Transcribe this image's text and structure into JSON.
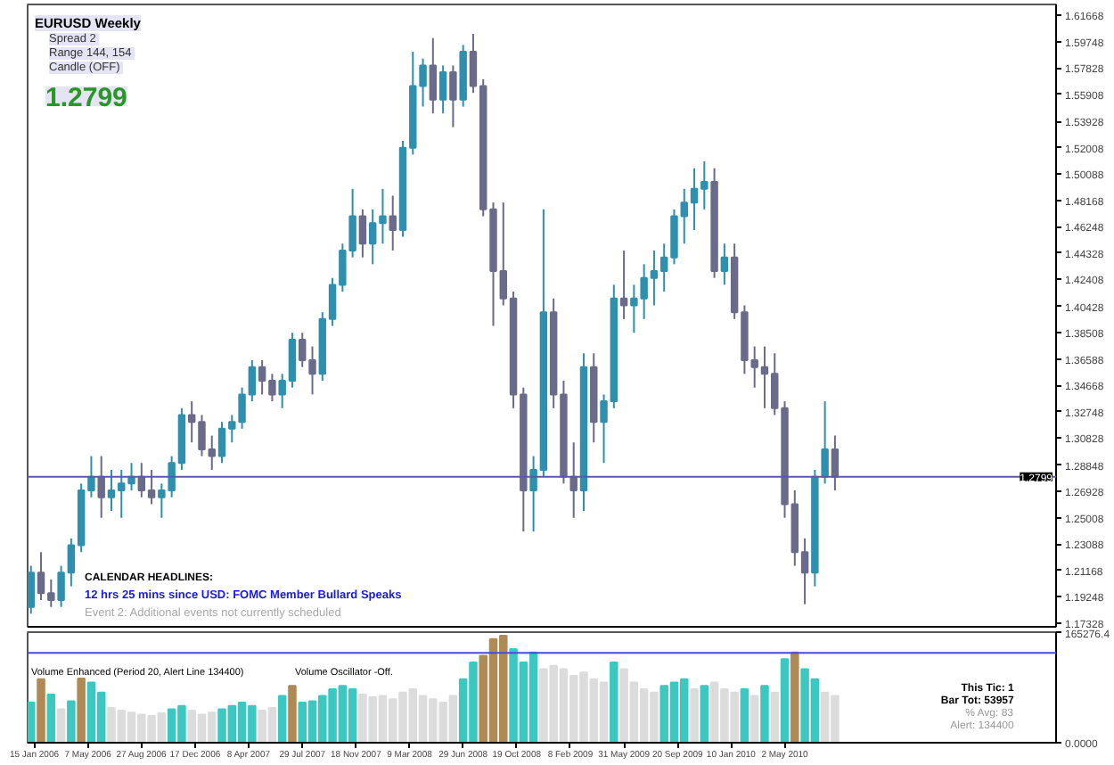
{
  "chart_data": [
    {
      "type": "candlestick",
      "title": "EURUSD Weekly",
      "tick_labels": "y",
      "x": [
        "2006-01-08",
        "2006-01-29",
        "2006-02-19",
        "2006-03-12",
        "2006-04-02",
        "2006-04-23",
        "2006-05-14",
        "2006-06-04",
        "2006-06-25",
        "2006-07-16",
        "2006-08-06",
        "2006-08-27",
        "2006-09-17",
        "2006-10-08",
        "2006-10-29",
        "2006-11-19",
        "2006-12-10",
        "2006-12-31",
        "2007-01-21",
        "2007-02-11",
        "2007-03-04",
        "2007-03-25",
        "2007-04-15",
        "2007-05-06",
        "2007-05-27",
        "2007-06-17",
        "2007-07-08",
        "2007-07-29",
        "2007-08-19",
        "2007-09-09",
        "2007-09-30",
        "2007-10-21",
        "2007-11-11",
        "2007-12-02",
        "2007-12-23",
        "2008-01-13",
        "2008-02-03",
        "2008-02-24",
        "2008-03-16",
        "2008-04-06",
        "2008-04-27",
        "2008-05-18",
        "2008-06-08",
        "2008-06-29",
        "2008-07-20",
        "2008-08-10",
        "2008-08-31",
        "2008-09-21",
        "2008-10-12",
        "2008-11-02",
        "2008-11-23",
        "2008-12-14",
        "2009-01-04",
        "2009-01-25",
        "2009-02-15",
        "2009-03-08",
        "2009-03-29",
        "2009-04-19",
        "2009-05-10",
        "2009-05-31",
        "2009-06-21",
        "2009-07-12",
        "2009-08-02",
        "2009-08-23",
        "2009-09-13",
        "2009-10-04",
        "2009-10-25",
        "2009-11-15",
        "2009-12-06",
        "2009-12-27",
        "2010-01-17",
        "2010-02-07",
        "2010-02-28",
        "2010-03-21",
        "2010-04-11",
        "2010-05-02",
        "2010-05-23",
        "2010-06-13",
        "2010-07-04",
        "2010-07-25",
        "2010-08-15"
      ],
      "ohlc": [
        [
          1.185,
          1.215,
          1.18,
          1.21
        ],
        [
          1.21,
          1.225,
          1.19,
          1.195
        ],
        [
          1.195,
          1.205,
          1.185,
          1.19
        ],
        [
          1.19,
          1.215,
          1.185,
          1.21
        ],
        [
          1.21,
          1.235,
          1.2,
          1.23
        ],
        [
          1.23,
          1.275,
          1.225,
          1.27
        ],
        [
          1.27,
          1.295,
          1.265,
          1.28
        ],
        [
          1.28,
          1.295,
          1.25,
          1.265
        ],
        [
          1.265,
          1.285,
          1.255,
          1.27
        ],
        [
          1.27,
          1.285,
          1.25,
          1.275
        ],
        [
          1.275,
          1.29,
          1.27,
          1.28
        ],
        [
          1.28,
          1.29,
          1.265,
          1.27
        ],
        [
          1.27,
          1.285,
          1.26,
          1.265
        ],
        [
          1.265,
          1.275,
          1.25,
          1.27
        ],
        [
          1.27,
          1.295,
          1.265,
          1.29
        ],
        [
          1.29,
          1.33,
          1.285,
          1.325
        ],
        [
          1.325,
          1.335,
          1.305,
          1.32
        ],
        [
          1.32,
          1.325,
          1.295,
          1.3
        ],
        [
          1.3,
          1.31,
          1.285,
          1.295
        ],
        [
          1.295,
          1.32,
          1.29,
          1.315
        ],
        [
          1.315,
          1.325,
          1.305,
          1.32
        ],
        [
          1.32,
          1.345,
          1.315,
          1.34
        ],
        [
          1.34,
          1.365,
          1.335,
          1.36
        ],
        [
          1.36,
          1.365,
          1.34,
          1.35
        ],
        [
          1.35,
          1.355,
          1.335,
          1.34
        ],
        [
          1.34,
          1.355,
          1.33,
          1.35
        ],
        [
          1.35,
          1.385,
          1.345,
          1.38
        ],
        [
          1.38,
          1.385,
          1.36,
          1.365
        ],
        [
          1.365,
          1.375,
          1.34,
          1.355
        ],
        [
          1.355,
          1.4,
          1.35,
          1.395
        ],
        [
          1.395,
          1.425,
          1.39,
          1.42
        ],
        [
          1.42,
          1.45,
          1.415,
          1.445
        ],
        [
          1.445,
          1.49,
          1.44,
          1.47
        ],
        [
          1.47,
          1.475,
          1.44,
          1.45
        ],
        [
          1.45,
          1.475,
          1.435,
          1.465
        ],
        [
          1.465,
          1.49,
          1.45,
          1.47
        ],
        [
          1.47,
          1.485,
          1.445,
          1.46
        ],
        [
          1.46,
          1.525,
          1.455,
          1.52
        ],
        [
          1.52,
          1.59,
          1.515,
          1.565
        ],
        [
          1.565,
          1.585,
          1.55,
          1.58
        ],
        [
          1.58,
          1.6,
          1.545,
          1.555
        ],
        [
          1.555,
          1.58,
          1.545,
          1.575
        ],
        [
          1.575,
          1.58,
          1.535,
          1.555
        ],
        [
          1.555,
          1.595,
          1.55,
          1.59
        ],
        [
          1.59,
          1.603,
          1.56,
          1.565
        ],
        [
          1.565,
          1.57,
          1.47,
          1.475
        ],
        [
          1.475,
          1.48,
          1.39,
          1.43
        ],
        [
          1.43,
          1.48,
          1.405,
          1.41
        ],
        [
          1.41,
          1.415,
          1.33,
          1.34
        ],
        [
          1.34,
          1.345,
          1.24,
          1.27
        ],
        [
          1.27,
          1.295,
          1.24,
          1.285
        ],
        [
          1.285,
          1.475,
          1.28,
          1.4
        ],
        [
          1.4,
          1.41,
          1.33,
          1.34
        ],
        [
          1.34,
          1.35,
          1.275,
          1.28
        ],
        [
          1.28,
          1.305,
          1.25,
          1.27
        ],
        [
          1.27,
          1.37,
          1.255,
          1.36
        ],
        [
          1.36,
          1.37,
          1.305,
          1.32
        ],
        [
          1.32,
          1.34,
          1.29,
          1.335
        ],
        [
          1.335,
          1.42,
          1.33,
          1.41
        ],
        [
          1.41,
          1.445,
          1.395,
          1.405
        ],
        [
          1.405,
          1.42,
          1.385,
          1.41
        ],
        [
          1.41,
          1.435,
          1.395,
          1.425
        ],
        [
          1.425,
          1.445,
          1.405,
          1.43
        ],
        [
          1.43,
          1.45,
          1.415,
          1.44
        ],
        [
          1.44,
          1.475,
          1.435,
          1.47
        ],
        [
          1.47,
          1.49,
          1.45,
          1.48
        ],
        [
          1.48,
          1.505,
          1.46,
          1.49
        ],
        [
          1.49,
          1.51,
          1.475,
          1.495
        ],
        [
          1.495,
          1.505,
          1.425,
          1.43
        ],
        [
          1.43,
          1.45,
          1.42,
          1.44
        ],
        [
          1.44,
          1.45,
          1.395,
          1.4
        ],
        [
          1.4,
          1.405,
          1.355,
          1.365
        ],
        [
          1.365,
          1.375,
          1.345,
          1.36
        ],
        [
          1.36,
          1.375,
          1.33,
          1.355
        ],
        [
          1.355,
          1.37,
          1.325,
          1.33
        ],
        [
          1.33,
          1.335,
          1.25,
          1.26
        ],
        [
          1.26,
          1.27,
          1.215,
          1.225
        ],
        [
          1.225,
          1.235,
          1.187,
          1.21
        ],
        [
          1.21,
          1.285,
          1.2,
          1.28
        ],
        [
          1.28,
          1.335,
          1.275,
          1.3
        ],
        [
          1.3,
          1.31,
          1.27,
          1.2799
        ]
      ],
      "colors": [
        "#2f8fae",
        "#6a6a8a",
        "#6a6a8a",
        "#2f8fae",
        "#2f8fae",
        "#2f8fae",
        "#2f8fae",
        "#6a6a8a",
        "#2f8fae",
        "#2f8fae",
        "#2f8fae",
        "#6a6a8a",
        "#6a6a8a",
        "#2f8fae",
        "#2f8fae",
        "#2f8fae",
        "#6a6a8a",
        "#6a6a8a",
        "#6a6a8a",
        "#2f8fae",
        "#2f8fae",
        "#2f8fae",
        "#2f8fae",
        "#6a6a8a",
        "#6a6a8a",
        "#2f8fae",
        "#2f8fae",
        "#6a6a8a",
        "#6a6a8a",
        "#2f8fae",
        "#2f8fae",
        "#2f8fae",
        "#2f8fae",
        "#6a6a8a",
        "#2f8fae",
        "#2f8fae",
        "#6a6a8a",
        "#2f8fae",
        "#2f8fae",
        "#2f8fae",
        "#6a6a8a",
        "#2f8fae",
        "#6a6a8a",
        "#2f8fae",
        "#6a6a8a",
        "#6a6a8a",
        "#6a6a8a",
        "#6a6a8a",
        "#6a6a8a",
        "#6a6a8a",
        "#2f8fae",
        "#2f8fae",
        "#6a6a8a",
        "#6a6a8a",
        "#6a6a8a",
        "#2f8fae",
        "#6a6a8a",
        "#2f8fae",
        "#2f8fae",
        "#6a6a8a",
        "#2f8fae",
        "#2f8fae",
        "#2f8fae",
        "#2f8fae",
        "#2f8fae",
        "#2f8fae",
        "#2f8fae",
        "#2f8fae",
        "#6a6a8a",
        "#2f8fae",
        "#6a6a8a",
        "#6a6a8a",
        "#6a6a8a",
        "#6a6a8a",
        "#6a6a8a",
        "#6a6a8a",
        "#6a6a8a",
        "#6a6a8a",
        "#2f8fae",
        "#2f8fae",
        "#6a6a8a"
      ],
      "xlim": [
        "2006-01-01",
        "2011-11-20"
      ],
      "ylim": [
        1.1705,
        1.6245
      ],
      "yticks": [
        1.17328,
        1.19248,
        1.21168,
        1.23088,
        1.25008,
        1.26928,
        1.28848,
        1.30828,
        1.32748,
        1.34668,
        1.36588,
        1.38508,
        1.40428,
        1.42408,
        1.44328,
        1.46248,
        1.48168,
        1.50088,
        1.52008,
        1.53928,
        1.55908,
        1.57828,
        1.59748,
        1.61668
      ],
      "ref_lines": [
        {
          "axis": "y",
          "value": 1.2799,
          "label": "1.2799",
          "color": "#5a5aa8"
        }
      ],
      "annotations": [
        "Spread  2",
        "Range  144, 154",
        "Candle  (OFF)",
        "1.2799",
        "CALENDAR HEADLINES:",
        "12 hrs 25 mins since USD: FOMC Member Bullard Speaks",
        "Event 2: Additional events not currently scheduled"
      ]
    },
    {
      "type": "bar",
      "x": [
        "2006-01-08",
        "2006-01-29",
        "2006-02-19",
        "2006-03-12",
        "2006-04-02",
        "2006-04-23",
        "2006-05-14",
        "2006-06-04",
        "2006-06-25",
        "2006-07-16",
        "2006-08-06",
        "2006-08-27",
        "2006-09-17",
        "2006-10-08",
        "2006-10-29",
        "2006-11-19",
        "2006-12-10",
        "2006-12-31",
        "2007-01-21",
        "2007-02-11",
        "2007-03-04",
        "2007-03-25",
        "2007-04-15",
        "2007-05-06",
        "2007-05-27",
        "2007-06-17",
        "2007-07-08",
        "2007-07-29",
        "2007-08-19",
        "2007-09-09",
        "2007-09-30",
        "2007-10-21",
        "2007-11-11",
        "2007-12-02",
        "2007-12-23",
        "2008-01-13",
        "2008-02-03",
        "2008-02-24",
        "2008-03-16",
        "2008-04-06",
        "2008-04-27",
        "2008-05-18",
        "2008-06-08",
        "2008-06-29",
        "2008-07-20",
        "2008-08-10",
        "2008-08-31",
        "2008-09-21",
        "2008-10-12",
        "2008-11-02",
        "2008-11-23",
        "2008-12-14",
        "2009-01-04",
        "2009-01-25",
        "2009-02-15",
        "2009-03-08",
        "2009-03-29",
        "2009-04-19",
        "2009-05-10",
        "2009-05-31",
        "2009-06-21",
        "2009-07-12",
        "2009-08-02",
        "2009-08-23",
        "2009-09-13",
        "2009-10-04",
        "2009-10-25",
        "2009-11-15",
        "2009-12-06",
        "2009-12-27",
        "2010-01-17",
        "2010-02-07",
        "2010-02-28",
        "2010-03-21",
        "2010-04-11",
        "2010-05-02",
        "2010-05-23",
        "2010-06-13",
        "2010-07-04",
        "2010-07-25",
        "2010-08-15"
      ],
      "values": [
        60000,
        95000,
        72000,
        50000,
        62000,
        96000,
        90000,
        75000,
        52000,
        48000,
        45000,
        42000,
        40000,
        44000,
        50000,
        55000,
        48000,
        42000,
        45000,
        50000,
        55000,
        60000,
        55000,
        48000,
        52000,
        70000,
        85000,
        60000,
        62000,
        70000,
        80000,
        85000,
        80000,
        72000,
        68000,
        70000,
        65000,
        75000,
        80000,
        70000,
        65000,
        60000,
        70000,
        95000,
        120000,
        130000,
        155000,
        160000,
        140000,
        120000,
        135000,
        110000,
        115000,
        110000,
        100000,
        105000,
        95000,
        90000,
        120000,
        110000,
        90000,
        80000,
        75000,
        85000,
        90000,
        95000,
        80000,
        85000,
        90000,
        80000,
        75000,
        80000,
        70000,
        85000,
        75000,
        125000,
        135000,
        110000,
        95000,
        75000,
        70000
      ],
      "colors": [
        "#3cc8c0",
        "#b08a55",
        "#3cc8c0",
        "#dcdcdc",
        "#3cc8c0",
        "#b08a55",
        "#3cc8c0",
        "#3cc8c0",
        "#dcdcdc",
        "#dcdcdc",
        "#dcdcdc",
        "#dcdcdc",
        "#dcdcdc",
        "#dcdcdc",
        "#3cc8c0",
        "#3cc8c0",
        "#dcdcdc",
        "#dcdcdc",
        "#dcdcdc",
        "#3cc8c0",
        "#3cc8c0",
        "#3cc8c0",
        "#3cc8c0",
        "#dcdcdc",
        "#dcdcdc",
        "#3cc8c0",
        "#b08a55",
        "#3cc8c0",
        "#3cc8c0",
        "#3cc8c0",
        "#3cc8c0",
        "#3cc8c0",
        "#3cc8c0",
        "#dcdcdc",
        "#dcdcdc",
        "#dcdcdc",
        "#dcdcdc",
        "#dcdcdc",
        "#dcdcdc",
        "#dcdcdc",
        "#dcdcdc",
        "#dcdcdc",
        "#dcdcdc",
        "#3cc8c0",
        "#3cc8c0",
        "#b08a55",
        "#b08a55",
        "#b08a55",
        "#3cc8c0",
        "#3cc8c0",
        "#3cc8c0",
        "#dcdcdc",
        "#dcdcdc",
        "#dcdcdc",
        "#dcdcdc",
        "#dcdcdc",
        "#dcdcdc",
        "#dcdcdc",
        "#3cc8c0",
        "#dcdcdc",
        "#dcdcdc",
        "#dcdcdc",
        "#dcdcdc",
        "#3cc8c0",
        "#3cc8c0",
        "#3cc8c0",
        "#dcdcdc",
        "#3cc8c0",
        "#dcdcdc",
        "#dcdcdc",
        "#dcdcdc",
        "#3cc8c0",
        "#dcdcdc",
        "#3cc8c0",
        "#dcdcdc",
        "#3cc8c0",
        "#b08a55",
        "#3cc8c0",
        "#3cc8c0",
        "#dcdcdc",
        "#dcdcdc"
      ],
      "xlim": [
        "2006-01-01",
        "2011-11-20"
      ],
      "xticks": [
        {
          "value": "2006-01-15",
          "label": "15 Jan 2006"
        },
        {
          "value": "2006-05-07",
          "label": "7 May 2006"
        },
        {
          "value": "2006-08-27",
          "label": "27 Aug 2006"
        },
        {
          "value": "2006-12-17",
          "label": "17 Dec 2006"
        },
        {
          "value": "2007-04-08",
          "label": "8 Apr 2007"
        },
        {
          "value": "2007-07-29",
          "label": "29 Jul 2007"
        },
        {
          "value": "2007-11-18",
          "label": "18 Nov 2007"
        },
        {
          "value": "2008-03-09",
          "label": "9 Mar 2008"
        },
        {
          "value": "2008-06-29",
          "label": "29 Jun 2008"
        },
        {
          "value": "2008-10-19",
          "label": "19 Oct 2008"
        },
        {
          "value": "2009-02-08",
          "label": "8 Feb 2009"
        },
        {
          "value": "2009-05-31",
          "label": "31 May 2009"
        },
        {
          "value": "2009-09-20",
          "label": "20 Sep 2009"
        },
        {
          "value": "2010-01-10",
          "label": "10 Jan 2010"
        },
        {
          "value": "2010-05-02",
          "label": "2 May 2010"
        }
      ],
      "ylim": [
        0,
        165276.4
      ],
      "yticks": [
        {
          "value": 0,
          "label": "0.0000"
        },
        {
          "value": 165276.4,
          "label": "165276.4"
        }
      ],
      "ref_lines": [
        {
          "axis": "y",
          "value": 134400,
          "color": "#4a4ae0"
        }
      ],
      "annotations": [
        "Volume Enhanced  (Period 20, Alert Line 134400)",
        "Volume Oscillator  -Off.",
        "This Tic:  1",
        "Bar Tot:  53957",
        "% Avg:  83",
        "Alert:  134400"
      ]
    }
  ]
}
